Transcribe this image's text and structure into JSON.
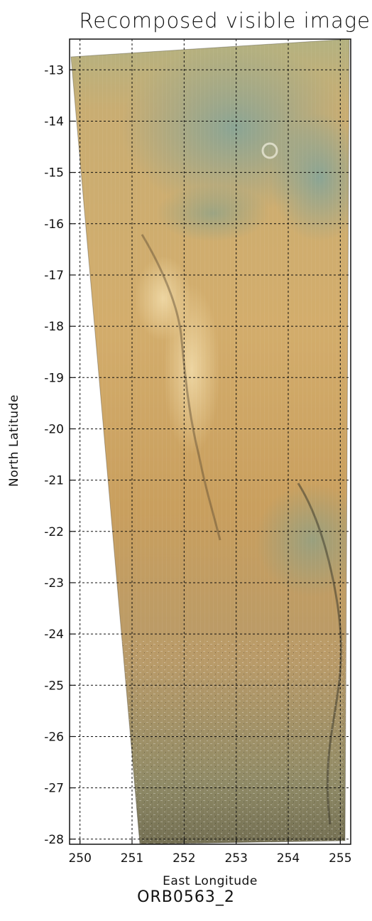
{
  "title": "Recomposed visible image",
  "subtitle": "ORB0563_2",
  "x_axis": {
    "label": "East Longitude",
    "range": [
      249.8,
      255.2
    ],
    "ticks": [
      "250",
      "251",
      "252",
      "253",
      "254",
      "255"
    ],
    "tick_values": [
      250,
      251,
      252,
      253,
      254,
      255
    ]
  },
  "y_axis": {
    "label": "North Latitude",
    "range": [
      -28.1,
      -12.4
    ],
    "ticks": [
      "-13",
      "-14",
      "-15",
      "-16",
      "-17",
      "-18",
      "-19",
      "-20",
      "-21",
      "-22",
      "-23",
      "-24",
      "-25",
      "-26",
      "-27",
      "-28"
    ],
    "tick_values": [
      -13,
      -14,
      -15,
      -16,
      -17,
      -18,
      -19,
      -20,
      -21,
      -22,
      -23,
      -24,
      -25,
      -26,
      -27,
      -28
    ]
  },
  "grid": true,
  "colors": {
    "terrain_ochre": "#c9a060",
    "terrain_tan": "#d8b679",
    "terrain_green": "#8fa88e",
    "terrain_dark": "#4b4a38",
    "grid_line": "#111111"
  }
}
